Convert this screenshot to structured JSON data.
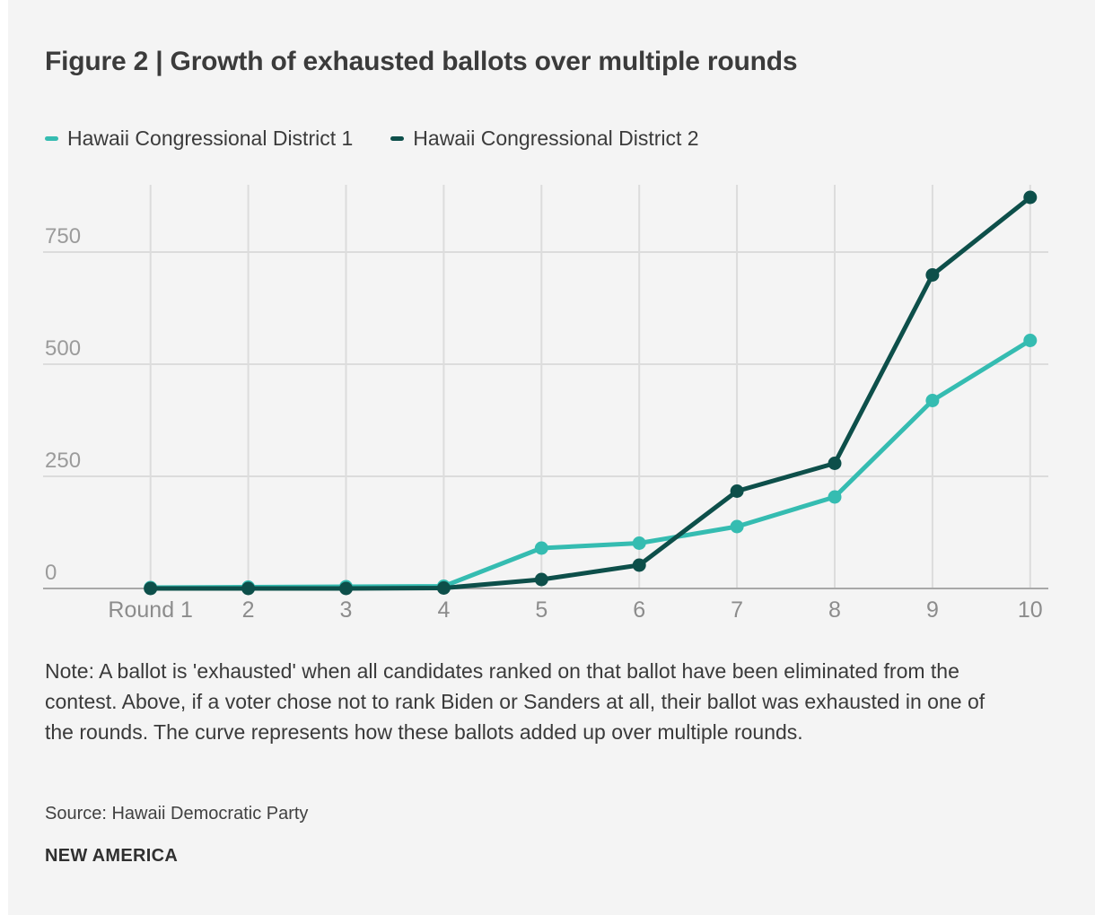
{
  "header": {
    "title": "Figure 2 | Growth of exhausted ballots over multiple rounds"
  },
  "chart_data": {
    "type": "line",
    "title": "Figure 2 | Growth of exhausted ballots over multiple rounds",
    "categories": [
      "Round 1",
      "2",
      "3",
      "4",
      "5",
      "6",
      "7",
      "8",
      "9",
      "10"
    ],
    "series": [
      {
        "name": "Hawaii Congressional District 1",
        "color": "#35bcb1",
        "values": [
          2,
          3,
          4,
          5,
          90,
          101,
          138,
          204,
          419,
          553
        ]
      },
      {
        "name": "Hawaii Congressional District 2",
        "color": "#0d4f4a",
        "values": [
          0,
          0,
          0,
          1,
          20,
          52,
          217,
          279,
          699,
          872
        ]
      }
    ],
    "xlabel": "",
    "ylabel": "",
    "ylim": [
      0,
      900
    ],
    "yticks": [
      0,
      250,
      500,
      750
    ],
    "grid": true,
    "legend_position": "top-left"
  },
  "footer": {
    "note": "Note: A ballot is 'exhausted' when all candidates ranked on that ballot have been eliminated from the contest. Above, if a voter chose not to rank Biden or Sanders at all, their ballot was exhausted in one of the rounds. The curve represents how these ballots added up over multiple rounds.",
    "source": "Source: Hawaii Democratic Party",
    "brand": "NEW AMERICA"
  },
  "colors": {
    "background": "#f4f4f4",
    "gridline": "#dcdcdc",
    "axis_baseline": "#a8a8a8",
    "y_tick_label": "#9b9b9b",
    "x_tick_label": "#8c8c8c",
    "text_dark": "#3a3a3a"
  }
}
